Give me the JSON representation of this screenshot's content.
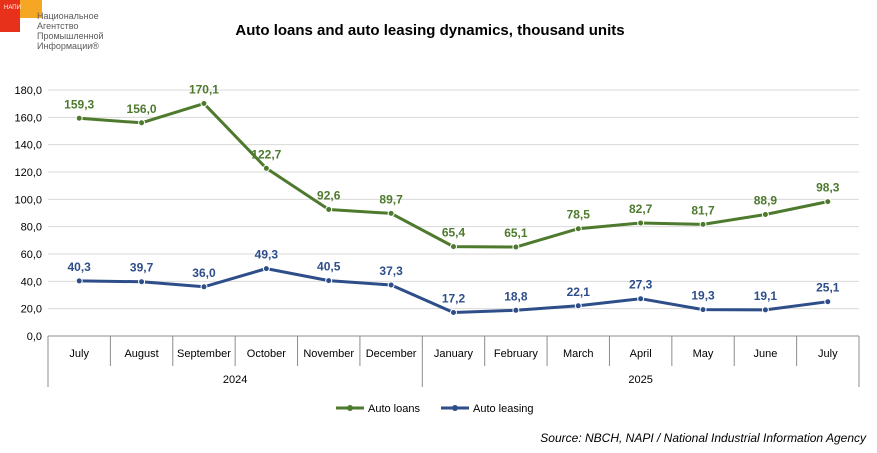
{
  "logo": {
    "abbr": "НАПИ",
    "lines": [
      "Национальное",
      "Агентство",
      "Промышленной",
      "Информации®"
    ],
    "colors": {
      "red": "#e8311a",
      "orange": "#f5a623"
    }
  },
  "chart_data": {
    "type": "line",
    "title": "Auto loans and auto leasing dynamics, thousand units",
    "categories": [
      "July",
      "August",
      "September",
      "October",
      "November",
      "December",
      "January",
      "February",
      "March",
      "April",
      "May",
      "June",
      "July"
    ],
    "groups": [
      {
        "label": "2024",
        "count": 6
      },
      {
        "label": "2025",
        "count": 7
      }
    ],
    "series": [
      {
        "name": "Auto loans",
        "color": "#4e7a2e",
        "values": [
          159.3,
          156.0,
          170.1,
          122.7,
          92.6,
          89.7,
          65.4,
          65.1,
          78.5,
          82.7,
          81.7,
          88.9,
          98.3
        ],
        "labels": [
          "159,3",
          "156,0",
          "170,1",
          "122,7",
          "92,6",
          "89,7",
          "65,4",
          "65,1",
          "78,5",
          "82,7",
          "81,7",
          "88,9",
          "98,3"
        ]
      },
      {
        "name": "Auto leasing",
        "color": "#2e4e8a",
        "values": [
          40.3,
          39.7,
          36.0,
          49.3,
          40.5,
          37.3,
          17.2,
          18.8,
          22.1,
          27.3,
          19.3,
          19.1,
          25.1
        ],
        "labels": [
          "40,3",
          "39,7",
          "36,0",
          "49,3",
          "40,5",
          "37,3",
          "17,2",
          "18,8",
          "22,1",
          "27,3",
          "19,3",
          "19,1",
          "25,1"
        ]
      }
    ],
    "ylim": [
      0,
      180
    ],
    "yticks": [
      0,
      20,
      40,
      60,
      80,
      100,
      120,
      140,
      160,
      180
    ],
    "ytick_labels": [
      "0,0",
      "20,0",
      "40,0",
      "60,0",
      "80,0",
      "100,0",
      "120,0",
      "140,0",
      "160,0",
      "180,0"
    ],
    "grid": true,
    "legend_position": "bottom"
  },
  "source": "Source: NBCH, NAPI / National Industrial Information Agency"
}
